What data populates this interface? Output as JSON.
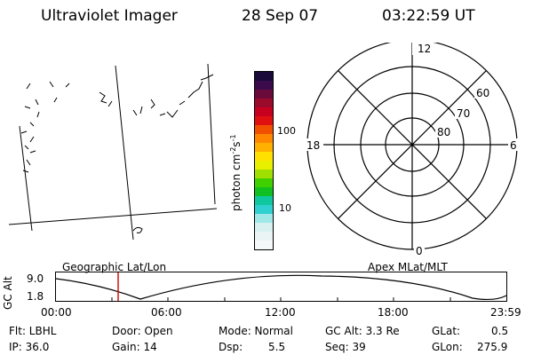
{
  "header": {
    "title": "Ultraviolet Imager",
    "date": "28 Sep 07",
    "time": "03:22:59 UT"
  },
  "colorbar": {
    "unit_prefix": "photon cm",
    "unit_exp1": "-2",
    "unit_mid": "s",
    "unit_exp2": "-1",
    "tick_high": "100",
    "tick_low": "10",
    "colors": [
      "#1a0a3a",
      "#3b0a4a",
      "#6a0a3a",
      "#9a0a2a",
      "#c80020",
      "#e01010",
      "#f05000",
      "#ff8800",
      "#ffb000",
      "#ffe000",
      "#e8f000",
      "#a0e000",
      "#40d000",
      "#10c020",
      "#10c8a0",
      "#30d0d0",
      "#a0e8e8",
      "#d8f0f0",
      "#eaf4f4",
      "#f4f8f8"
    ]
  },
  "polar": {
    "mlt_top": "12",
    "mlt_left": "18",
    "mlt_right": "6",
    "mlt_bottom": "0",
    "lat_60": "60",
    "lat_70": "70",
    "lat_80": "80"
  },
  "timeline": {
    "label_left": "Geographic Lat/Lon",
    "label_right": "Apex MLat/MLT",
    "axis_title": "GC Alt",
    "y_top": "9.0",
    "y_bottom": "1.8",
    "x_ticks": [
      "00:00",
      "06:00",
      "12:00",
      "18:00",
      "23:59"
    ]
  },
  "status": {
    "flt": "Flt: LBHL",
    "door": "Door: Open",
    "mode": "Mode: Normal",
    "gcalt": "GC Alt: 3.3 Re",
    "glat_label": "GLat:",
    "glat_value": "0.5",
    "ip": "IP: 36.0",
    "gain": "Gain: 14",
    "dsp_label": "Dsp:",
    "dsp_value": "5.5",
    "seq": "Seq: 39",
    "glon_label": "GLon:",
    "glon_value": "275.9"
  }
}
